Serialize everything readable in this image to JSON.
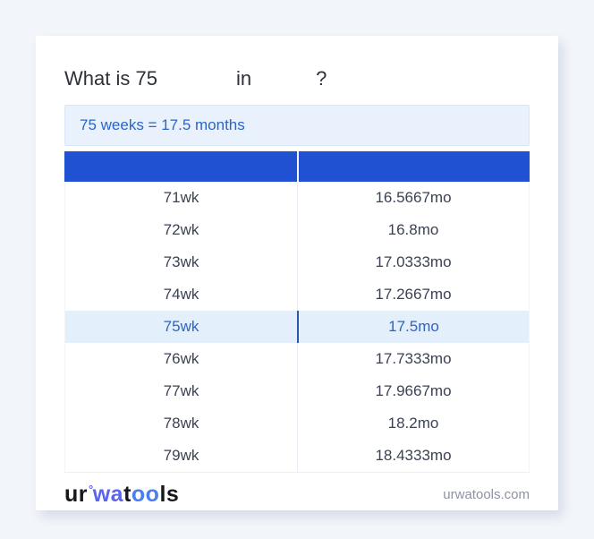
{
  "title": {
    "prefix": "What is 75",
    "connector": "in",
    "question_mark": "?"
  },
  "result": {
    "text": "75 weeks = 17.5 months"
  },
  "table": {
    "columns": [
      "",
      ""
    ],
    "rows": [
      {
        "weeks": "71wk",
        "months": "16.5667mo",
        "highlight": false
      },
      {
        "weeks": "72wk",
        "months": "16.8mo",
        "highlight": false
      },
      {
        "weeks": "73wk",
        "months": "17.0333mo",
        "highlight": false
      },
      {
        "weeks": "74wk",
        "months": "17.2667mo",
        "highlight": false
      },
      {
        "weeks": "75wk",
        "months": "17.5mo",
        "highlight": true
      },
      {
        "weeks": "76wk",
        "months": "17.7333mo",
        "highlight": false
      },
      {
        "weeks": "77wk",
        "months": "17.9667mo",
        "highlight": false
      },
      {
        "weeks": "78wk",
        "months": "18.2mo",
        "highlight": false
      },
      {
        "weeks": "79wk",
        "months": "18.4333mo",
        "highlight": false
      }
    ]
  },
  "footer": {
    "logo_segments": [
      {
        "text": "ur",
        "color": "#17181c",
        "style": "normal"
      },
      {
        "text": "°",
        "color": "#5a64ee",
        "style": "degree"
      },
      {
        "text": "wa",
        "color": "#5a64ee",
        "style": "normal"
      },
      {
        "text": "t",
        "color": "#17181c",
        "style": "normal"
      },
      {
        "text": "oo",
        "color": "#4b7cf0",
        "style": "normal"
      },
      {
        "text": "ls",
        "color": "#17181c",
        "style": "normal"
      }
    ],
    "site": "urwatools.com"
  },
  "colors": {
    "page_background": "#f2f5fa",
    "card_background": "#ffffff",
    "header_blue": "#2151d3",
    "highlight_row_background": "#e4effc",
    "highlight_divider": "#2d56aa",
    "link_blue": "#2a65c8",
    "result_box_background": "#e9f1fd",
    "result_box_border": "#d9e7f9",
    "row_text": "#3a4254",
    "footer_site_text": "#8d93a1",
    "logo_blue": "#5a64ee",
    "logo_glasses_blue": "#4b7cf0"
  }
}
